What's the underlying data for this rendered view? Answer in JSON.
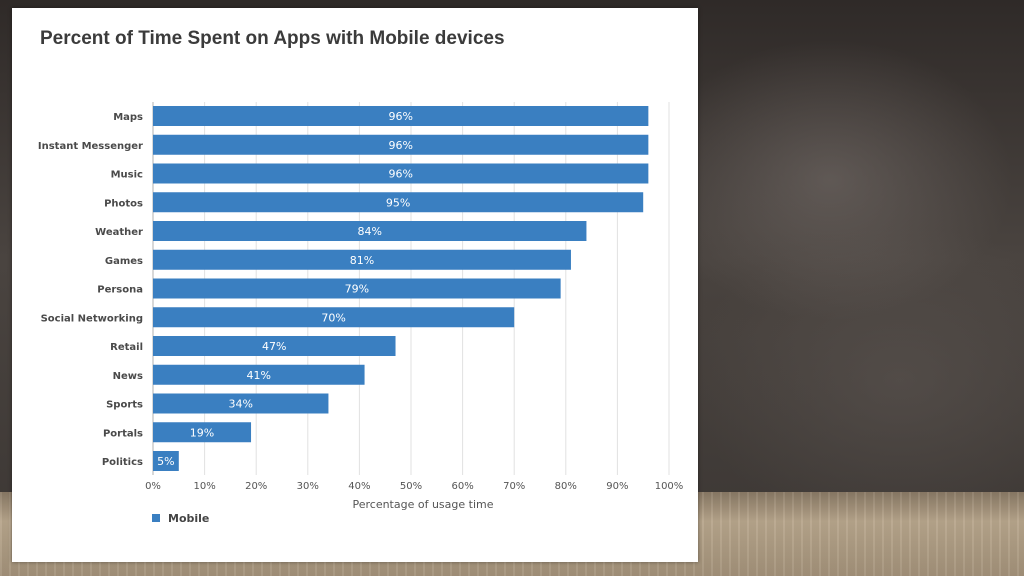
{
  "chart_data": {
    "type": "bar",
    "orientation": "horizontal",
    "title": "Percent of Time Spent on Apps with Mobile devices",
    "xlabel": "Percentage of usage time",
    "ylabel": "",
    "xlim": [
      0,
      100
    ],
    "xticks": [
      0,
      10,
      20,
      30,
      40,
      50,
      60,
      70,
      80,
      90,
      100
    ],
    "xtick_labels": [
      "0%",
      "10%",
      "20%",
      "30%",
      "40%",
      "50%",
      "60%",
      "70%",
      "80%",
      "90%",
      "100%"
    ],
    "grid": true,
    "legend_position": "bottom-left",
    "categories": [
      "Maps",
      "Instant Messenger",
      "Music",
      "Photos",
      "Weather",
      "Games",
      "Persona",
      "Social Networking",
      "Retail",
      "News",
      "Sports",
      "Portals",
      "Politics"
    ],
    "series": [
      {
        "name": "Mobile",
        "color": "#3a7fc1",
        "values": [
          96,
          96,
          96,
          95,
          84,
          81,
          79,
          70,
          47,
          41,
          34,
          19,
          5
        ],
        "labels": [
          "96%",
          "96%",
          "96%",
          "95%",
          "84%",
          "81%",
          "79%",
          "70%",
          "47%",
          "41%",
          "34%",
          "19%",
          "5%"
        ]
      }
    ]
  }
}
